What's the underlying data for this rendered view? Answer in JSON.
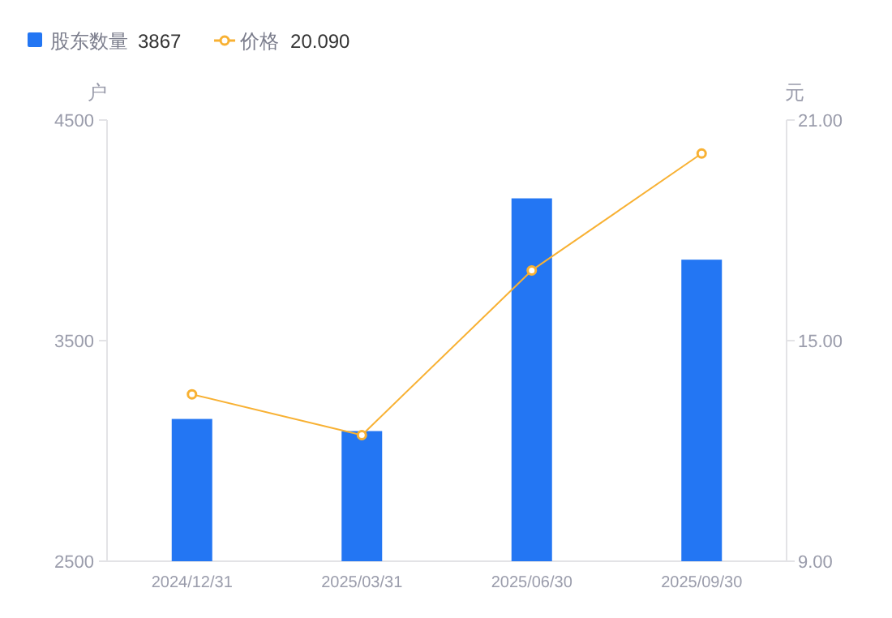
{
  "chart_data": {
    "type": "bar",
    "categories": [
      "2024/12/31",
      "2025/03/31",
      "2025/06/30",
      "2025/09/30"
    ],
    "series": [
      {
        "name": "股东数量",
        "color": "#2376f3",
        "values": [
          3145,
          3090,
          4145,
          3867
        ]
      },
      {
        "name": "价格",
        "type": "line",
        "axis": "y2",
        "color": "#f8b133",
        "marker": "circle",
        "values": [
          13.54,
          12.43,
          16.91,
          20.09
        ]
      }
    ],
    "annotations": [
      "3867",
      "20.090"
    ],
    "ylabel": "户",
    "y2label": "元",
    "ylim": [
      2500,
      4500
    ],
    "yticks": [
      2500,
      3500,
      4500
    ],
    "y2lim": [
      9,
      21
    ],
    "y2ticks": [
      {
        "value": 9,
        "label": "9.00"
      },
      {
        "value": 15,
        "label": "15.00"
      },
      {
        "value": 21,
        "label": "21.00"
      }
    ],
    "grid": false,
    "legend": "top left"
  }
}
